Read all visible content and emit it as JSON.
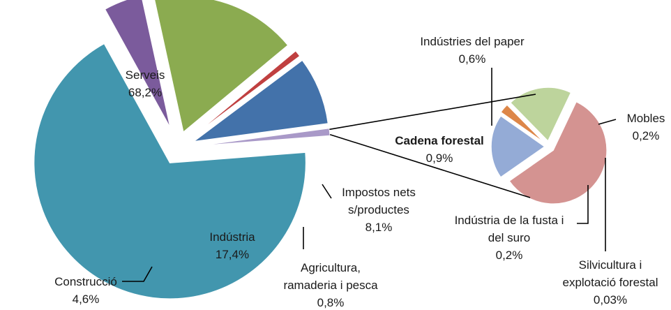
{
  "chart_data": [
    {
      "type": "pie",
      "categories": [
        "Serveis",
        "Construcció",
        "Indústria",
        "Agricultura, ramaderia i pesca",
        "Impostos nets s/productes",
        "Cadena forestal"
      ],
      "values": [
        68.2,
        4.6,
        17.4,
        0.8,
        8.1,
        0.9
      ],
      "labels": [
        {
          "lines": [
            "Serveis",
            "68,2%"
          ]
        },
        {
          "lines": [
            "Construcció",
            "4,6%"
          ]
        },
        {
          "lines": [
            "Indústria",
            "17,4%"
          ]
        },
        {
          "lines": [
            "Agricultura,",
            "ramaderia i pesca",
            "0,8%"
          ]
        },
        {
          "lines": [
            "Impostos nets",
            "s/productes",
            "8,1%"
          ]
        },
        {
          "lines": [
            "Cadena forestal",
            "0,9%"
          ]
        }
      ],
      "colors": [
        "#4296AE",
        "#7B5B9C",
        "#8BAB50",
        "#C04040",
        "#4372AA",
        "#A999C8"
      ]
    },
    {
      "type": "pie",
      "categories": [
        "Indústria de la fusta i del suro",
        "Indústries del paper",
        "Mobles",
        "Silvicultura i explotació forestal"
      ],
      "values": [
        0.2,
        0.6,
        0.2,
        0.03
      ],
      "labels": [
        {
          "lines": [
            "Indústria de la fusta i",
            "del suro",
            "0,2%"
          ]
        },
        {
          "lines": [
            "Indústries del paper",
            "0,6%"
          ]
        },
        {
          "lines": [
            "Mobles",
            "0,2%"
          ]
        },
        {
          "lines": [
            "Silvicultura i",
            "explotació forestal",
            "0,03%"
          ]
        }
      ],
      "colors": [
        "#94ABD6",
        "#D49391",
        "#BDD49C",
        "#DD8749"
      ]
    }
  ]
}
